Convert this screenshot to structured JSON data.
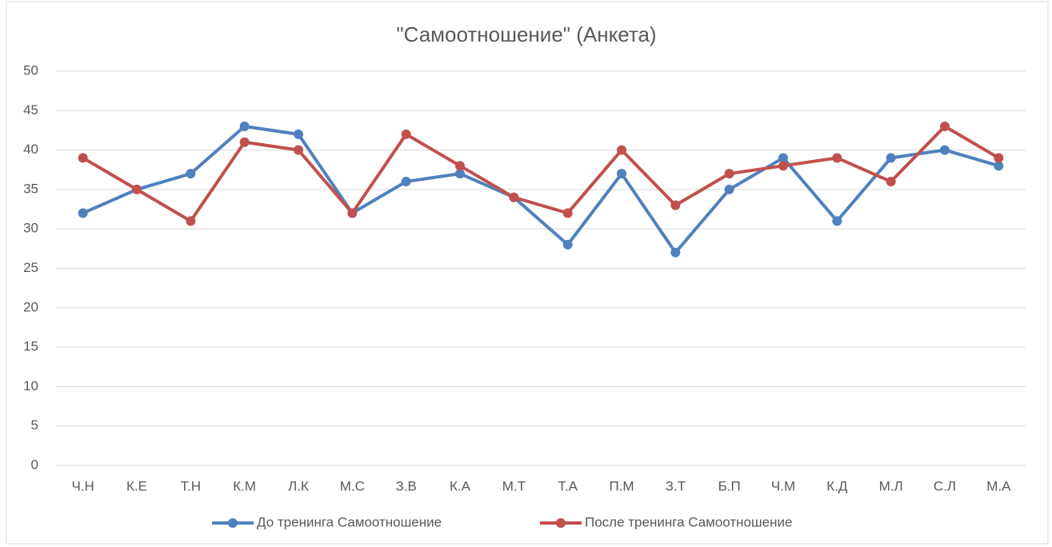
{
  "chart_data": {
    "type": "line",
    "title": "\"Самоотношение\" (Анкета)",
    "categories": [
      "Ч.Н",
      "К.Е",
      "Т.Н",
      "К.М",
      "Л.К",
      "М.С",
      "З.В",
      "К.А",
      "М.Т",
      "Т.А",
      "П.М",
      "З.Т",
      "Б.П",
      "Ч.М",
      "К.Д",
      "М.Л",
      "С.Л",
      "М.А"
    ],
    "series": [
      {
        "name": "До тренинга Самоотношение",
        "color": "#4f81bd",
        "values": [
          32,
          35,
          37,
          43,
          42,
          32,
          36,
          37,
          34,
          28,
          37,
          27,
          35,
          39,
          31,
          39,
          40,
          38
        ]
      },
      {
        "name": "После тренинга Самоотношение",
        "color": "#c0504d",
        "values": [
          39,
          35,
          31,
          41,
          40,
          32,
          42,
          38,
          34,
          32,
          40,
          33,
          37,
          38,
          39,
          36,
          43,
          39
        ]
      }
    ],
    "ylim": [
      0,
      50
    ],
    "yticks": [
      0,
      5,
      10,
      15,
      20,
      25,
      30,
      35,
      40,
      45,
      50
    ],
    "grid": true,
    "legend": "bottom"
  }
}
